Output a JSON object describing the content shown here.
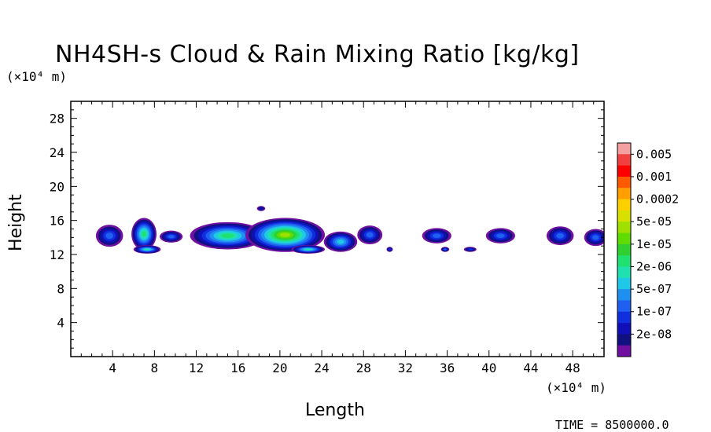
{
  "chart_data": {
    "type": "heatmap",
    "title": "NH4SH-s Cloud & Rain Mixing Ratio [kg/kg]",
    "xlabel": "Length",
    "ylabel": "Height",
    "x_unit": "(×10⁴ m)",
    "y_unit": "(×10⁴ m)",
    "xlim": [
      0,
      51
    ],
    "ylim": [
      0,
      30
    ],
    "x_ticks": [
      4,
      8,
      12,
      16,
      20,
      24,
      28,
      32,
      36,
      40,
      44,
      48
    ],
    "y_ticks": [
      4,
      8,
      12,
      16,
      20,
      24,
      28
    ],
    "time_label": "TIME = 8500000.0",
    "legend": {
      "labels": [
        "0.005",
        "0.001",
        "0.0002",
        "5e-05",
        "1e-05",
        "2e-06",
        "5e-07",
        "1e-07",
        "2e-08"
      ],
      "colors_top_to_bottom": [
        "#f5a0a0",
        "#f04040",
        "#ff0000",
        "#ff5a00",
        "#ffa000",
        "#ffd000",
        "#d8e000",
        "#a0e000",
        "#60dc00",
        "#30d030",
        "#20e070",
        "#20e0b0",
        "#20c8e8",
        "#2090f0",
        "#2060f0",
        "#1030e0",
        "#1010b8",
        "#101080",
        "#7010a0"
      ]
    },
    "cells": [
      {
        "x": 3.7,
        "y": 14.2,
        "rx": 1.3,
        "ry": 1.3,
        "level": 4
      },
      {
        "x": 7.0,
        "y": 14.4,
        "rx": 1.2,
        "ry": 1.9,
        "level": 8
      },
      {
        "x": 7.3,
        "y": 12.6,
        "rx": 1.3,
        "ry": 0.5,
        "level": 7
      },
      {
        "x": 9.6,
        "y": 14.1,
        "rx": 1.1,
        "ry": 0.7,
        "level": 4
      },
      {
        "x": 15.0,
        "y": 14.2,
        "rx": 3.6,
        "ry": 1.6,
        "level": 8
      },
      {
        "x": 20.5,
        "y": 14.3,
        "rx": 3.8,
        "ry": 2.0,
        "level": 11
      },
      {
        "x": 22.7,
        "y": 12.6,
        "rx": 1.6,
        "ry": 0.5,
        "level": 7
      },
      {
        "x": 25.8,
        "y": 13.5,
        "rx": 1.6,
        "ry": 1.2,
        "level": 6
      },
      {
        "x": 28.6,
        "y": 14.3,
        "rx": 1.2,
        "ry": 1.1,
        "level": 4
      },
      {
        "x": 30.5,
        "y": 12.6,
        "rx": 0.3,
        "ry": 0.3,
        "level": 3
      },
      {
        "x": 35.0,
        "y": 14.2,
        "rx": 1.4,
        "ry": 0.9,
        "level": 4
      },
      {
        "x": 35.8,
        "y": 12.6,
        "rx": 0.4,
        "ry": 0.3,
        "level": 4
      },
      {
        "x": 38.2,
        "y": 12.6,
        "rx": 0.6,
        "ry": 0.3,
        "level": 3
      },
      {
        "x": 41.1,
        "y": 14.2,
        "rx": 1.4,
        "ry": 0.9,
        "level": 4
      },
      {
        "x": 46.8,
        "y": 14.2,
        "rx": 1.3,
        "ry": 1.1,
        "level": 4
      },
      {
        "x": 50.2,
        "y": 14.0,
        "rx": 1.1,
        "ry": 1.0,
        "level": 4
      },
      {
        "x": 18.2,
        "y": 17.4,
        "rx": 0.4,
        "ry": 0.3,
        "level": 2
      }
    ]
  }
}
